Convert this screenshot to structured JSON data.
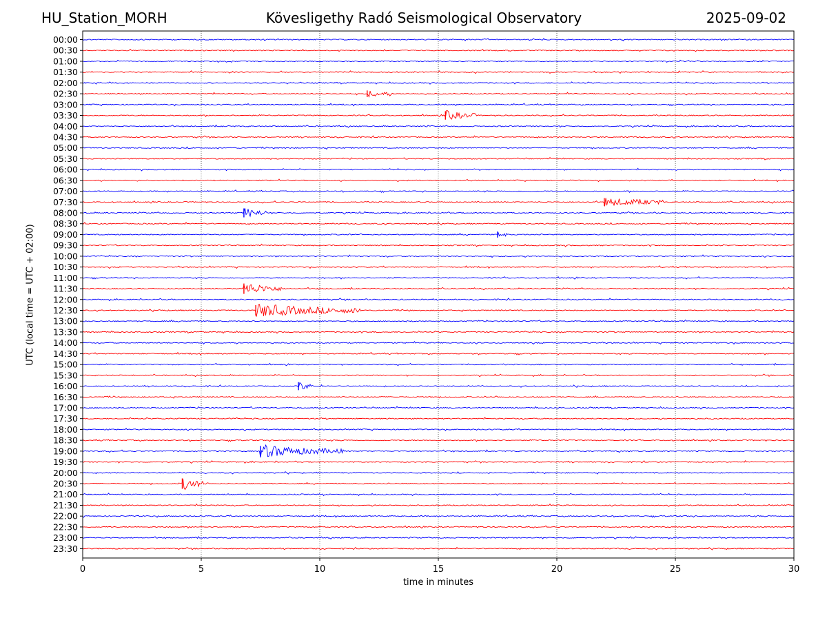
{
  "header": {
    "station": "HU_Station_MORH",
    "observatory": "Kövesligethy Radó Seismological Observatory",
    "date": "2025-09-02"
  },
  "chart_data": {
    "type": "line",
    "title": "Kövesligethy Radó Seismological Observatory",
    "xlabel": "time in minutes",
    "ylabel": "UTC (local time = UTC + 02:00)",
    "xlim": [
      0,
      30
    ],
    "xticks": [
      0,
      5,
      10,
      15,
      20,
      25,
      30
    ],
    "grid": "vertical dotted lines at x ticks",
    "colors": {
      "even_rows": "#0000ff",
      "odd_rows": "#ff0000"
    },
    "rows": [
      "00:00",
      "00:30",
      "01:00",
      "01:30",
      "02:00",
      "02:30",
      "03:00",
      "03:30",
      "04:00",
      "04:30",
      "05:00",
      "05:30",
      "06:00",
      "06:30",
      "07:00",
      "07:30",
      "08:00",
      "08:30",
      "09:00",
      "09:30",
      "10:00",
      "10:30",
      "11:00",
      "11:30",
      "12:00",
      "12:30",
      "13:00",
      "13:30",
      "14:00",
      "14:30",
      "15:00",
      "15:30",
      "16:00",
      "16:30",
      "17:00",
      "17:30",
      "18:00",
      "18:30",
      "19:00",
      "19:30",
      "20:00",
      "20:30",
      "21:00",
      "21:30",
      "22:00",
      "22:30",
      "23:00",
      "23:30"
    ],
    "events": [
      {
        "row": "02:30",
        "start_min": 12.0,
        "duration_min": 1.0,
        "amplitude": 0.5
      },
      {
        "row": "03:30",
        "start_min": 15.3,
        "duration_min": 1.3,
        "amplitude": 0.9
      },
      {
        "row": "07:30",
        "start_min": 22.0,
        "duration_min": 2.5,
        "amplitude": 0.8
      },
      {
        "row": "08:00",
        "start_min": 6.8,
        "duration_min": 1.0,
        "amplitude": 1.0
      },
      {
        "row": "09:00",
        "start_min": 17.5,
        "duration_min": 0.4,
        "amplitude": 0.4
      },
      {
        "row": "11:30",
        "start_min": 6.8,
        "duration_min": 1.6,
        "amplitude": 1.3
      },
      {
        "row": "12:30",
        "start_min": 7.3,
        "duration_min": 4.5,
        "amplitude": 1.4
      },
      {
        "row": "16:00",
        "start_min": 9.1,
        "duration_min": 0.6,
        "amplitude": 0.8
      },
      {
        "row": "19:00",
        "start_min": 7.5,
        "duration_min": 3.5,
        "amplitude": 1.3
      },
      {
        "row": "20:30",
        "start_min": 4.2,
        "duration_min": 1.0,
        "amplitude": 1.4
      }
    ]
  }
}
